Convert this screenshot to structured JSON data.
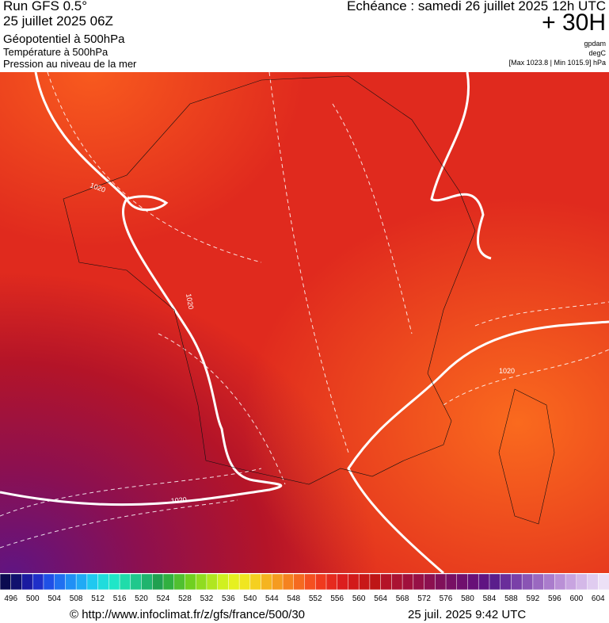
{
  "header": {
    "run": "Run GFS 0.5°",
    "run_date": "25 juillet 2025 06Z",
    "field_1": "Géopotentiel à 500hPa",
    "field_2": "Température à 500hPa",
    "field_3": "Pression au niveau de la mer",
    "valid": "Echéance : samedi 26 juillet 2025 12h UTC",
    "lead": "+ 30H",
    "unit_1": "gpdam",
    "unit_2": "degC",
    "pressure_range": "[Max 1023.8 | Min 1015.9] hPa"
  },
  "map": {
    "contour_labels": [
      "1020",
      "1020",
      "1020",
      "1020"
    ]
  },
  "colorbar": {
    "labels": [
      496,
      500,
      504,
      508,
      512,
      516,
      520,
      524,
      528,
      532,
      536,
      540,
      544,
      548,
      552,
      556,
      560,
      564,
      568,
      572,
      576,
      580,
      584,
      588,
      592,
      596,
      600,
      604
    ],
    "colors": [
      "#0b0b50",
      "#10106e",
      "#1a1aa0",
      "#1f2fc8",
      "#1f50e6",
      "#2070f0",
      "#2090f5",
      "#20aaf5",
      "#20c8f0",
      "#20dcdc",
      "#20e6c8",
      "#20dcaa",
      "#20c88c",
      "#20b46e",
      "#20a050",
      "#30b040",
      "#50c030",
      "#70d020",
      "#90dc20",
      "#b0e620",
      "#d0f020",
      "#e6f020",
      "#f0e620",
      "#f5d020",
      "#f5b420",
      "#f59b20",
      "#f58220",
      "#f56a20",
      "#f55020",
      "#f03a1e",
      "#e62a1e",
      "#dc1e1e",
      "#d21a1a",
      "#c81818",
      "#be1616",
      "#b41428",
      "#aa1232",
      "#a0103c",
      "#961046",
      "#8c1050",
      "#80105a",
      "#781064",
      "#70106e",
      "#681078",
      "#601482",
      "#5a1e8c",
      "#6a2e9a",
      "#7a40a8",
      "#8a54b4",
      "#9a68c0",
      "#aa7ccc",
      "#ba90d6",
      "#c8a4e0",
      "#d4b8e8",
      "#e0ccf0",
      "#ece0f6"
    ]
  },
  "footer": {
    "source": "© http://www.infoclimat.fr/z/gfs/france/500/30",
    "generated": "25 juil. 2025  9:42 UTC"
  }
}
